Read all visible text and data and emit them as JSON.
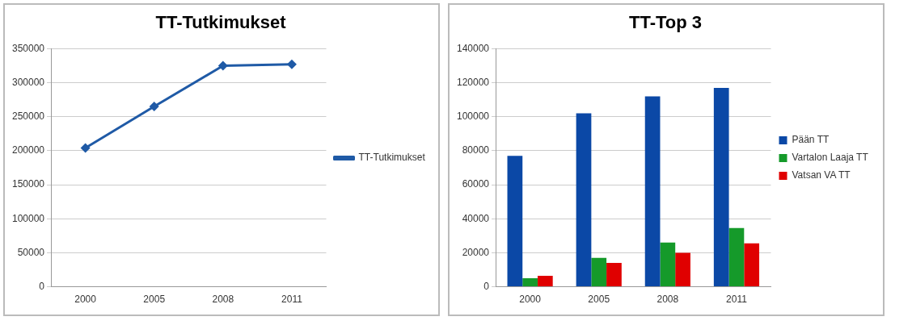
{
  "chart_data": [
    {
      "type": "line",
      "title": "TT-Tutkimukset",
      "categories": [
        "2000",
        "2005",
        "2008",
        "2011"
      ],
      "series": [
        {
          "name": "TT-Tutkimukset",
          "color": "#1f5aa6",
          "values": [
            204000,
            265000,
            325000,
            327000
          ]
        }
      ],
      "ylim": [
        0,
        350000
      ],
      "yticks": [
        0,
        50000,
        100000,
        150000,
        200000,
        250000,
        300000,
        350000
      ],
      "grid": "y",
      "legend": "right",
      "marker": "diamond"
    },
    {
      "type": "bar",
      "title": "TT-Top 3",
      "categories": [
        "2000",
        "2005",
        "2008",
        "2011"
      ],
      "series": [
        {
          "name": "Pään TT",
          "color": "#0b48a6",
          "values": [
            77000,
            102000,
            112000,
            117000
          ]
        },
        {
          "name": "Vartalon Laaja TT",
          "color": "#159a2a",
          "values": [
            5000,
            17000,
            26000,
            34500
          ]
        },
        {
          "name": "Vatsan VA TT",
          "color": "#e00000",
          "values": [
            6500,
            14000,
            20000,
            25500
          ]
        }
      ],
      "ylim": [
        0,
        140000
      ],
      "yticks": [
        0,
        20000,
        40000,
        60000,
        80000,
        100000,
        120000,
        140000
      ],
      "grid": "y",
      "legend": "right"
    }
  ]
}
